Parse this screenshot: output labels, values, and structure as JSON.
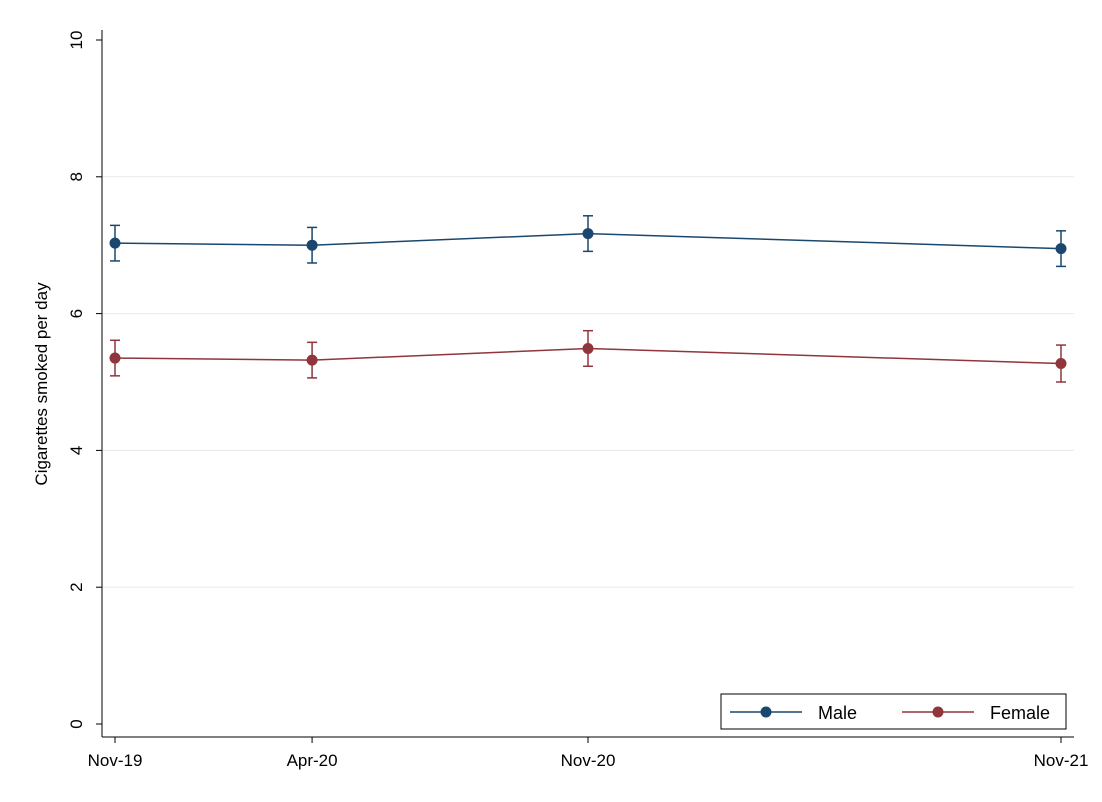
{
  "chart_data": {
    "type": "line",
    "x": [
      "Nov-19",
      "Apr-20",
      "Nov-20",
      "Nov-21"
    ],
    "x_dates": [
      "2019-11",
      "2020-04",
      "2020-11",
      "2021-11"
    ],
    "ylabel": "Cigarettes smoked per day",
    "ylim": [
      0,
      10
    ],
    "yticks": [
      "0",
      "2",
      "4",
      "6",
      "8",
      "10"
    ],
    "grid": true,
    "legend_placement": "bottom-right",
    "series": [
      {
        "name": "Male",
        "color": "#1a476f",
        "values": [
          7.03,
          7.0,
          7.17,
          6.95
        ],
        "ci_low": [
          6.77,
          6.74,
          6.91,
          6.69
        ],
        "ci_high": [
          7.29,
          7.26,
          7.43,
          7.21
        ]
      },
      {
        "name": "Female",
        "color": "#90353b",
        "values": [
          5.35,
          5.32,
          5.49,
          5.27
        ],
        "ci_low": [
          5.09,
          5.06,
          5.23,
          5.0
        ],
        "ci_high": [
          5.61,
          5.58,
          5.75,
          5.54
        ]
      }
    ]
  }
}
